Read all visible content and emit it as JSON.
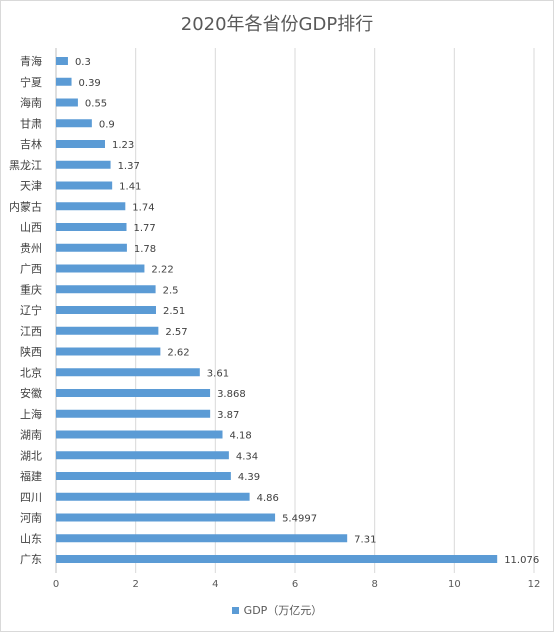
{
  "chart_data": {
    "type": "bar",
    "orientation": "horizontal",
    "title": "2020年各省份GDP排行",
    "categories": [
      "青海",
      "宁夏",
      "海南",
      "甘肃",
      "吉林",
      "黑龙江",
      "天津",
      "内蒙古",
      "山西",
      "贵州",
      "广西",
      "重庆",
      "辽宁",
      "江西",
      "陕西",
      "北京",
      "安徽",
      "上海",
      "湖南",
      "湖北",
      "福建",
      "四川",
      "河南",
      "山东",
      "广东"
    ],
    "series": [
      {
        "name": "GDP（万亿元）",
        "values": [
          0.3,
          0.39,
          0.55,
          0.9,
          1.23,
          1.37,
          1.41,
          1.74,
          1.77,
          1.78,
          2.22,
          2.5,
          2.51,
          2.57,
          2.62,
          3.61,
          3.868,
          3.87,
          4.18,
          4.34,
          4.39,
          4.86,
          5.4997,
          7.31,
          11.076
        ],
        "color": "#5b9bd5"
      }
    ],
    "xlim": [
      0,
      12
    ],
    "xticks": [
      0,
      2,
      4,
      6,
      8,
      10,
      12
    ],
    "grid": true,
    "legend_position": "bottom",
    "data_labels": true
  }
}
